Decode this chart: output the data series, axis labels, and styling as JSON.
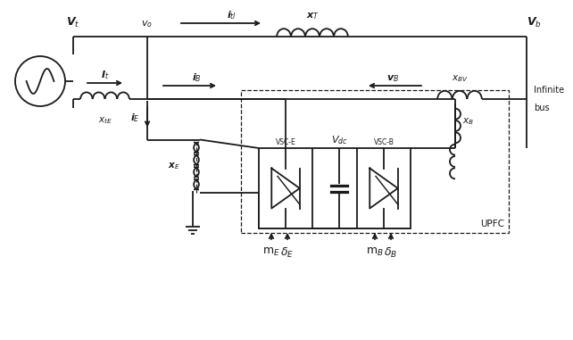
{
  "bg_color": "#ffffff",
  "line_color": "#1a1a1a",
  "text_color": "#1a1a1a",
  "fig_width": 6.42,
  "fig_height": 3.81,
  "dpi": 100,
  "labels": {
    "Vt": "V$_t$",
    "Vo": "v$_o$",
    "itl": "i$_{tl}$",
    "XT": "x$_T$",
    "Vb": "V$_b$",
    "It": "I$_t$",
    "iB": "i$_B$",
    "VB": "v$_B$",
    "XBV": "x$_{BV}$",
    "XtE": "x$_{tE}$",
    "XB": "x$_B$",
    "iE": "i$_E$",
    "XE": "x$_E$",
    "VSC_E": "VSC-E",
    "Vdc": "V$_{dc}$",
    "VSC_B": "VSC-B",
    "UPFC": "UPFC",
    "Infinite": "Infinite",
    "bus": "bus",
    "mE": "m$_E$",
    "deltaE": "$\\delta_E$",
    "mB": "m$_B$",
    "deltaB": "$\\delta_B$"
  }
}
